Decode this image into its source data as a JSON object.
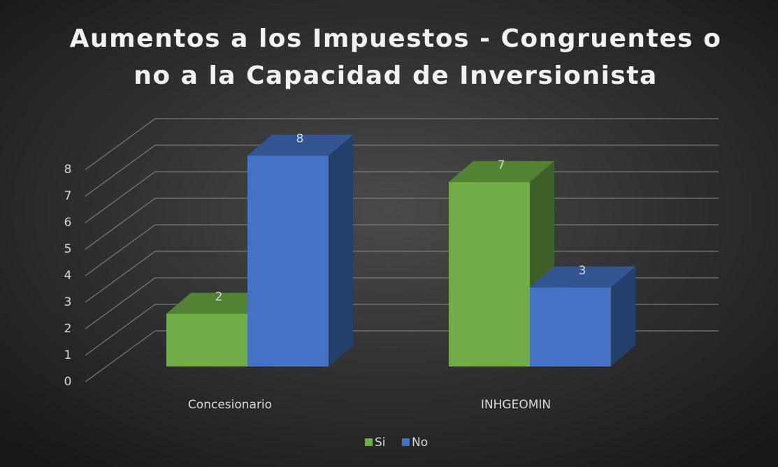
{
  "chart_data": {
    "type": "bar3d",
    "title": "Aumentos a los Impuestos - Congruentes o no a la Capacidad de Inversionista",
    "categories": [
      "Concesionario",
      "INHGEOMIN"
    ],
    "series": [
      {
        "name": "Si",
        "color": "#70ad47",
        "values": [
          2,
          7
        ]
      },
      {
        "name": "No",
        "color": "#4472c4",
        "values": [
          8,
          3
        ]
      }
    ],
    "ylim": [
      0,
      8
    ],
    "yticks": [
      0,
      1,
      2,
      3,
      4,
      5,
      6,
      7,
      8
    ],
    "grid": true,
    "legend": "bottom"
  }
}
